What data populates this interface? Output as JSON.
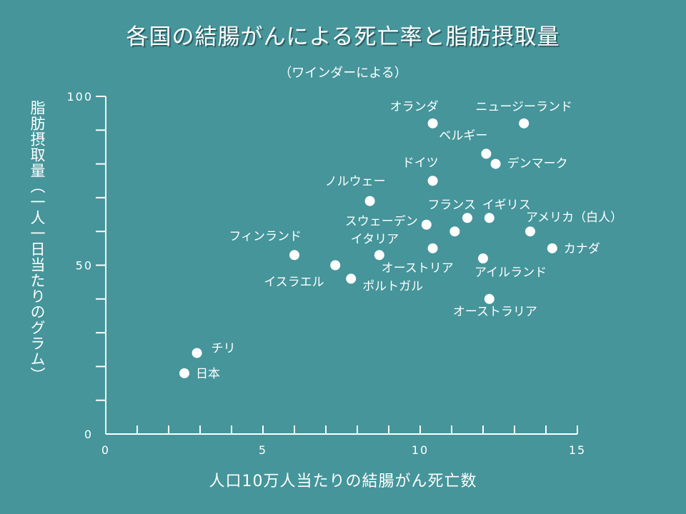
{
  "chart_data": {
    "type": "scatter",
    "title": "各国の結腸がんによる死亡率と脂肪摂取量",
    "subtitle": "（ワインダーによる）",
    "xlabel": "人口10万人当たりの結腸がん死亡数",
    "ylabel": "脂肪摂取量（一人一日当たりのグラム）",
    "xlim": [
      0,
      15
    ],
    "ylim": [
      0,
      100
    ],
    "x_ticks": [
      0,
      5,
      10,
      15
    ],
    "y_ticks": [
      0,
      50,
      100
    ],
    "grid": false,
    "points": [
      {
        "label": "オランダ",
        "x": 10.4,
        "y": 92
      },
      {
        "label": "ニュージーランド",
        "x": 13.3,
        "y": 92
      },
      {
        "label": "ベルギー",
        "x": 12.1,
        "y": 83
      },
      {
        "label": "ドイツ",
        "x": 10.4,
        "y": 75
      },
      {
        "label": "デンマーク",
        "x": 12.4,
        "y": 80
      },
      {
        "label": "ノルウェー",
        "x": 8.4,
        "y": 69
      },
      {
        "label": "フランス",
        "x": 11.5,
        "y": 64
      },
      {
        "label": "イギリス",
        "x": 12.2,
        "y": 64
      },
      {
        "label": "スウェーデン",
        "x": 10.2,
        "y": 62
      },
      {
        "label": "アメリカ（白人）",
        "x": 13.5,
        "y": 60
      },
      {
        "label": "",
        "x": 11.1,
        "y": 60
      },
      {
        "label": "フィンランド",
        "x": 6.0,
        "y": 53
      },
      {
        "label": "イタリア",
        "x": 8.7,
        "y": 53
      },
      {
        "label": "カナダ",
        "x": 14.2,
        "y": 55
      },
      {
        "label": "オーストリア",
        "x": 10.4,
        "y": 55
      },
      {
        "label": "アイルランド",
        "x": 12.0,
        "y": 52
      },
      {
        "label": "イスラエル",
        "x": 7.3,
        "y": 50
      },
      {
        "label": "ポルトガル",
        "x": 7.8,
        "y": 46
      },
      {
        "label": "オーストラリア",
        "x": 12.2,
        "y": 40
      },
      {
        "label": "チリ",
        "x": 2.9,
        "y": 24
      },
      {
        "label": "日本",
        "x": 2.5,
        "y": 18
      }
    ]
  }
}
